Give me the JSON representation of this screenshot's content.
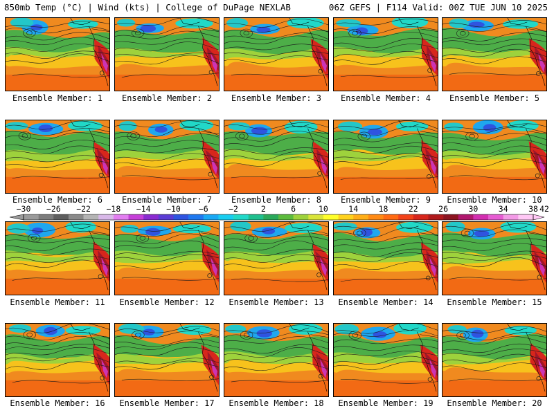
{
  "header": {
    "left": "850mb Temp (°C) | Wind (kts) | College of DuPage NEXLAB",
    "right": "06Z GEFS | F114 Valid: 00Z TUE JUN 10 2025"
  },
  "members": [
    {
      "label": "Ensemble Member: 1"
    },
    {
      "label": "Ensemble Member: 2"
    },
    {
      "label": "Ensemble Member: 3"
    },
    {
      "label": "Ensemble Member: 4"
    },
    {
      "label": "Ensemble Member: 5"
    },
    {
      "label": "Ensemble Member: 6"
    },
    {
      "label": "Ensemble Member: 7"
    },
    {
      "label": "Ensemble Member: 8"
    },
    {
      "label": "Ensemble Member: 9"
    },
    {
      "label": "Ensemble Member: 10"
    },
    {
      "label": "Ensemble Member: 11"
    },
    {
      "label": "Ensemble Member: 12"
    },
    {
      "label": "Ensemble Member: 13"
    },
    {
      "label": "Ensemble Member: 14"
    },
    {
      "label": "Ensemble Member: 15"
    },
    {
      "label": "Ensemble Member: 16"
    },
    {
      "label": "Ensemble Member: 17"
    },
    {
      "label": "Ensemble Member: 18"
    },
    {
      "label": "Ensemble Member: 19"
    },
    {
      "label": "Ensemble Member: 20"
    }
  ],
  "colorbar": {
    "ticks": [
      "−30",
      "−26",
      "−22",
      "−18",
      "−14",
      "−10",
      "−6",
      "−2",
      "2",
      "6",
      "10",
      "14",
      "18",
      "22",
      "26",
      "30",
      "34",
      "38",
      "42"
    ],
    "colors": [
      "#9a9a9a",
      "#7c7c7c",
      "#5e5e5e",
      "#8a8a8a",
      "#b4b4b4",
      "#d8b8e8",
      "#e27ef0",
      "#c53fd8",
      "#8a2bd0",
      "#5b3cd4",
      "#2f54e0",
      "#1e78ef",
      "#19a8f4",
      "#18cdf0",
      "#21d8c8",
      "#1fbf8e",
      "#2aa95a",
      "#5cbb3d",
      "#9ed23c",
      "#d9e43a",
      "#ffff2a",
      "#ffd21e",
      "#ffae18",
      "#ff8a14",
      "#ff6a12",
      "#f2431a",
      "#d7261c",
      "#b01a1c",
      "#8c1420",
      "#b0176e",
      "#d22eb0",
      "#e65cd2",
      "#f29ae6",
      "#ffc8f5"
    ]
  }
}
